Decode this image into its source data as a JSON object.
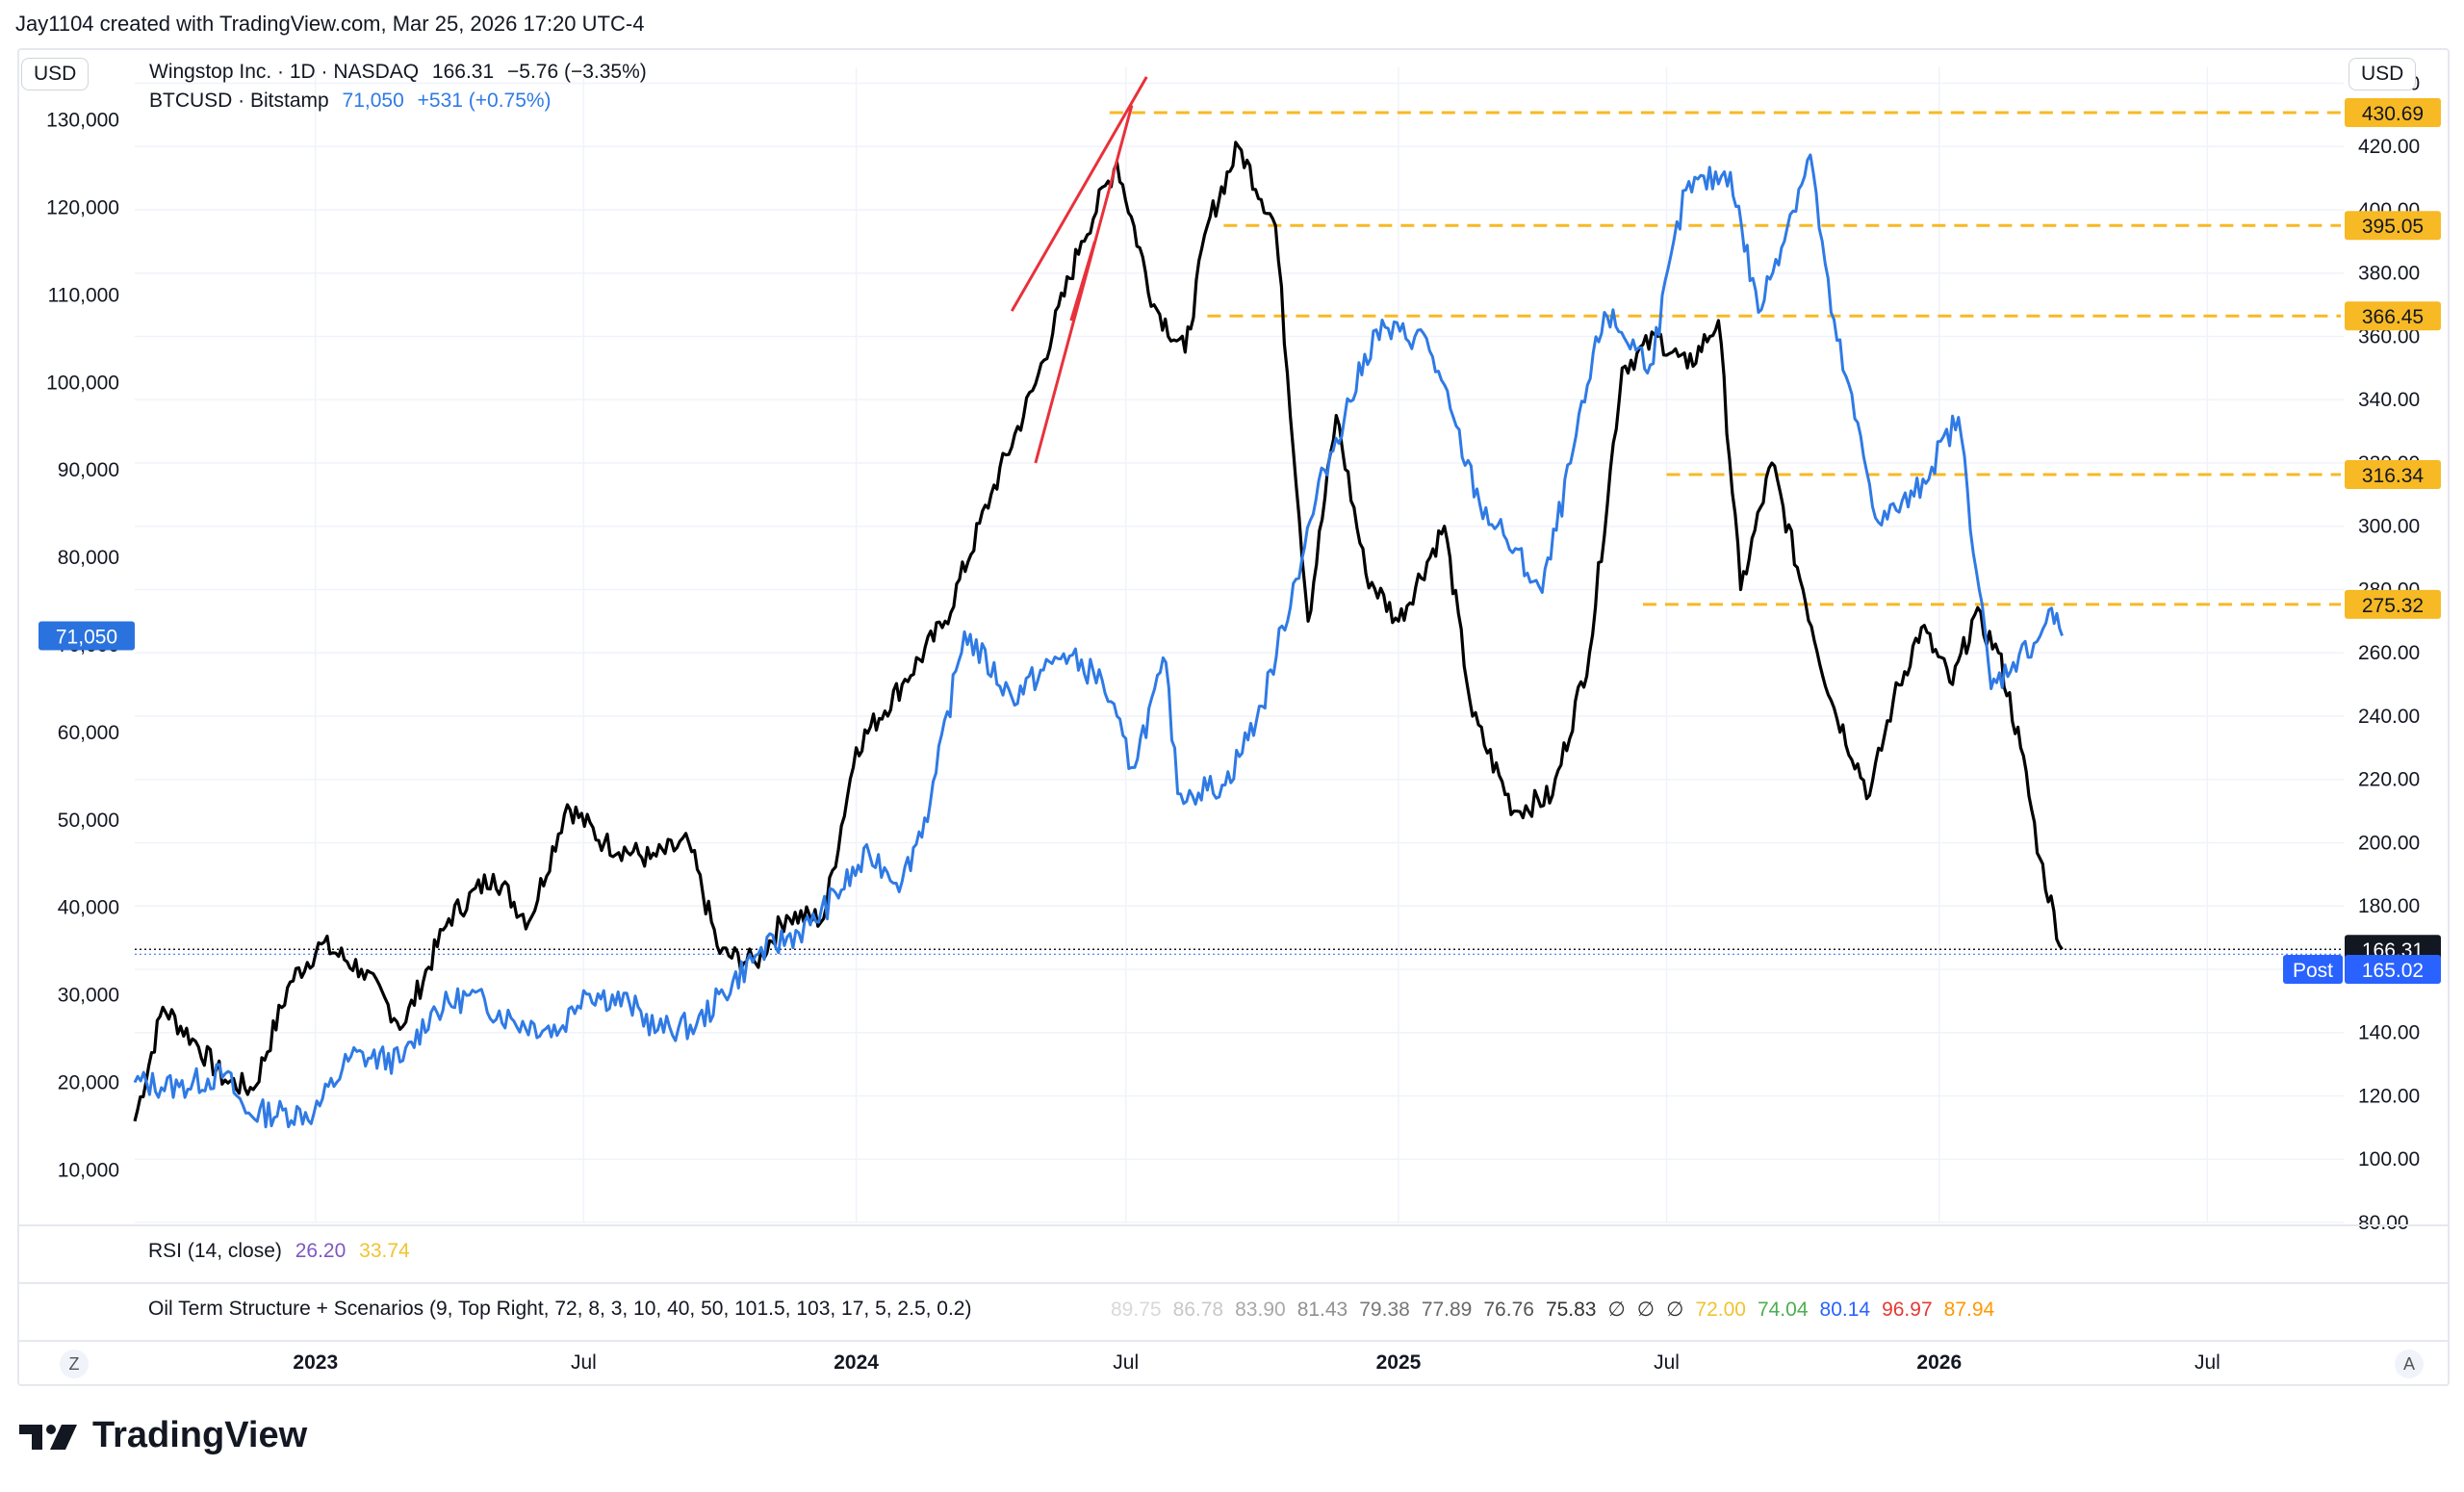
{
  "header": {
    "text": "Jay1104 created with TradingView.com, Mar 25, 2026 17:20 UTC-4"
  },
  "currency_left": "USD",
  "currency_right": "USD",
  "legend": {
    "line1": {
      "symbol": "Wingstop Inc. · 1D · NASDAQ",
      "price": "166.31",
      "change": "−5.76 (−3.35%)"
    },
    "line2": {
      "symbol": "BTCUSD · Bitstamp",
      "price": "71,050",
      "change": "+531 (+0.75%)"
    }
  },
  "rsi": {
    "label": "RSI (14, close)",
    "v1": "26.20",
    "v2": "33.74"
  },
  "oil": {
    "label": "Oil Term Structure + Scenarios (9, Top Right, 72, 8, 3, 10, 40, 50, 101.5, 103, 17, 5, 2.5, 0.2)",
    "values": [
      "89.75",
      "86.78",
      "83.90",
      "81.43",
      "79.38",
      "77.89",
      "76.76",
      "75.83",
      "∅",
      "∅",
      "∅",
      "72.00",
      "74.04",
      "80.14",
      "96.97",
      "87.94"
    ],
    "colors": [
      "#d8d8d8",
      "#c8c8c8",
      "#a8a8a8",
      "#909090",
      "#787878",
      "#6a6a6a",
      "#555555",
      "#333333",
      "#333333",
      "#333333",
      "#333333",
      "#f0c330",
      "#4caf50",
      "#2962ff",
      "#e53935",
      "#ff9800"
    ]
  },
  "buttons": {
    "z": "Z",
    "a": "A"
  },
  "brand": "TradingView",
  "colors": {
    "wing": "#000000",
    "btc": "#2f7ae5",
    "level": "#f7b924",
    "trend": "#e8313b",
    "btcTag": "#2a73df",
    "postTag": "#2962ff"
  },
  "chart_data": {
    "type": "line",
    "x_range": [
      "2022-09-01",
      "2026-10-01"
    ],
    "x_ticks": [
      {
        "label": "2023",
        "date": "2023-01-01",
        "bold": true
      },
      {
        "label": "Jul",
        "date": "2023-07-01",
        "bold": false
      },
      {
        "label": "2024",
        "date": "2024-01-01",
        "bold": true
      },
      {
        "label": "Jul",
        "date": "2024-07-01",
        "bold": false
      },
      {
        "label": "2025",
        "date": "2025-01-01",
        "bold": true
      },
      {
        "label": "Jul",
        "date": "2025-07-01",
        "bold": false
      },
      {
        "label": "2026",
        "date": "2026-01-01",
        "bold": true
      },
      {
        "label": "Jul",
        "date": "2026-07-01",
        "bold": false
      }
    ],
    "left_axis": {
      "ticks": [
        "10,000",
        "20,000",
        "30,000",
        "40,000",
        "50,000",
        "60,000",
        "70,000",
        "80,000",
        "90,000",
        "100,000",
        "110,000",
        "120,000",
        "130,000"
      ],
      "tick_values": [
        10000,
        20000,
        30000,
        40000,
        50000,
        60000,
        70000,
        80000,
        90000,
        100000,
        110000,
        120000,
        130000
      ],
      "range": [
        4000,
        136000
      ]
    },
    "right_axis": {
      "ticks": [
        "80.00",
        "100.00",
        "120.00",
        "140.00",
        "160.00",
        "180.00",
        "200.00",
        "220.00",
        "240.00",
        "260.00",
        "280.00",
        "300.00",
        "320.00",
        "340.00",
        "360.00",
        "380.00",
        "400.00",
        "420.00",
        "440.00"
      ],
      "tick_values": [
        80,
        100,
        120,
        140,
        160,
        180,
        200,
        220,
        240,
        260,
        280,
        300,
        320,
        340,
        360,
        380,
        400,
        420,
        440
      ],
      "range": [
        80,
        445
      ]
    },
    "series": [
      {
        "name": "Wingstop Inc.",
        "axis": "right",
        "color": "#000000",
        "points": [
          [
            "2022-09-01",
            112
          ],
          [
            "2022-09-20",
            148
          ],
          [
            "2022-10-10",
            138
          ],
          [
            "2022-11-01",
            125
          ],
          [
            "2022-11-20",
            122
          ],
          [
            "2022-12-15",
            156
          ],
          [
            "2023-01-05",
            168
          ],
          [
            "2023-02-01",
            160
          ],
          [
            "2023-03-01",
            142
          ],
          [
            "2023-04-01",
            176
          ],
          [
            "2023-05-01",
            190
          ],
          [
            "2023-05-25",
            175
          ],
          [
            "2023-06-20",
            212
          ],
          [
            "2023-07-15",
            200
          ],
          [
            "2023-08-15",
            195
          ],
          [
            "2023-09-10",
            200
          ],
          [
            "2023-10-01",
            165
          ],
          [
            "2023-10-25",
            162
          ],
          [
            "2023-11-15",
            177
          ],
          [
            "2023-12-10",
            176
          ],
          [
            "2024-01-01",
            230
          ],
          [
            "2024-02-01",
            250
          ],
          [
            "2024-03-01",
            270
          ],
          [
            "2024-04-01",
            310
          ],
          [
            "2024-05-01",
            345
          ],
          [
            "2024-06-01",
            390
          ],
          [
            "2024-06-25",
            415
          ],
          [
            "2024-07-20",
            370
          ],
          [
            "2024-08-10",
            355
          ],
          [
            "2024-08-25",
            395
          ],
          [
            "2024-09-15",
            420
          ],
          [
            "2024-10-10",
            395
          ],
          [
            "2024-11-01",
            270
          ],
          [
            "2024-11-20",
            335
          ],
          [
            "2024-12-10",
            285
          ],
          [
            "2025-01-01",
            270
          ],
          [
            "2025-02-01",
            300
          ],
          [
            "2025-02-20",
            240
          ],
          [
            "2025-03-20",
            210
          ],
          [
            "2025-04-15",
            215
          ],
          [
            "2025-05-10",
            260
          ],
          [
            "2025-06-01",
            350
          ],
          [
            "2025-06-25",
            360
          ],
          [
            "2025-07-15",
            350
          ],
          [
            "2025-08-05",
            365
          ],
          [
            "2025-08-20",
            280
          ],
          [
            "2025-09-10",
            320
          ],
          [
            "2025-10-01",
            280
          ],
          [
            "2025-10-20",
            245
          ],
          [
            "2025-11-15",
            215
          ],
          [
            "2025-12-01",
            245
          ],
          [
            "2025-12-20",
            268
          ],
          [
            "2026-01-10",
            250
          ],
          [
            "2026-01-25",
            272
          ],
          [
            "2026-02-10",
            260
          ],
          [
            "2026-02-25",
            230
          ],
          [
            "2026-03-10",
            195
          ],
          [
            "2026-03-25",
            166.31
          ]
        ]
      },
      {
        "name": "BTCUSD",
        "axis": "left",
        "color": "#2f7ae5",
        "points": [
          [
            "2022-09-01",
            20000
          ],
          [
            "2022-10-01",
            19500
          ],
          [
            "2022-11-01",
            21000
          ],
          [
            "2022-11-15",
            16500
          ],
          [
            "2022-12-31",
            16500
          ],
          [
            "2023-01-25",
            23000
          ],
          [
            "2023-03-01",
            22500
          ],
          [
            "2023-03-20",
            28000
          ],
          [
            "2023-04-15",
            30000
          ],
          [
            "2023-05-15",
            27000
          ],
          [
            "2023-06-15",
            26000
          ],
          [
            "2023-07-01",
            30500
          ],
          [
            "2023-08-01",
            29000
          ],
          [
            "2023-08-20",
            26000
          ],
          [
            "2023-09-15",
            26500
          ],
          [
            "2023-10-25",
            34500
          ],
          [
            "2023-12-01",
            38000
          ],
          [
            "2024-01-10",
            46000
          ],
          [
            "2024-02-01",
            43000
          ],
          [
            "2024-02-20",
            52000
          ],
          [
            "2024-03-14",
            71500
          ],
          [
            "2024-04-15",
            64000
          ],
          [
            "2024-05-20",
            69000
          ],
          [
            "2024-06-15",
            66000
          ],
          [
            "2024-07-05",
            56000
          ],
          [
            "2024-07-28",
            68000
          ],
          [
            "2024-08-05",
            53000
          ],
          [
            "2024-09-06",
            54000
          ],
          [
            "2024-10-01",
            63000
          ],
          [
            "2024-11-12",
            90000
          ],
          [
            "2024-12-17",
            106000
          ],
          [
            "2025-01-20",
            105000
          ],
          [
            "2025-02-25",
            86000
          ],
          [
            "2025-03-15",
            82000
          ],
          [
            "2025-04-08",
            76000
          ],
          [
            "2025-05-20",
            108000
          ],
          [
            "2025-06-20",
            102000
          ],
          [
            "2025-07-14",
            122000
          ],
          [
            "2025-08-13",
            124000
          ],
          [
            "2025-09-01",
            108000
          ],
          [
            "2025-10-06",
            126000
          ],
          [
            "2025-10-20",
            108000
          ],
          [
            "2025-11-21",
            84000
          ],
          [
            "2025-12-15",
            87000
          ],
          [
            "2026-01-14",
            96000
          ],
          [
            "2026-02-05",
            65000
          ],
          [
            "2026-02-20",
            68000
          ],
          [
            "2026-03-10",
            71000
          ],
          [
            "2026-03-16",
            74000
          ],
          [
            "2026-03-25",
            71050
          ]
        ]
      }
    ],
    "levels": [
      {
        "value": 430.69,
        "label": "430.69",
        "from": "2024-06-20"
      },
      {
        "value": 395.05,
        "label": "395.05",
        "from": "2024-09-05"
      },
      {
        "value": 366.45,
        "label": "366.45",
        "from": "2024-08-25"
      },
      {
        "value": 316.34,
        "label": "316.34",
        "from": "2025-07-01"
      },
      {
        "value": 275.32,
        "label": "275.32",
        "from": "2025-06-15"
      }
    ],
    "trendlines": [
      {
        "from": [
          "2024-04-15",
          368
        ],
        "to": [
          "2024-07-15",
          442
        ]
      },
      {
        "from": [
          "2024-05-01",
          320
        ],
        "to": [
          "2024-07-05",
          433
        ]
      },
      {
        "from": [
          "2024-05-25",
          365
        ],
        "to": [
          "2024-06-10",
          390
        ]
      }
    ],
    "last_price": {
      "value": 166.31,
      "label": "166.31",
      "post_label": "Post",
      "post_value": "165.02",
      "post_level": 160
    },
    "btc_tag": {
      "value": 71050,
      "label": "71,050"
    }
  }
}
